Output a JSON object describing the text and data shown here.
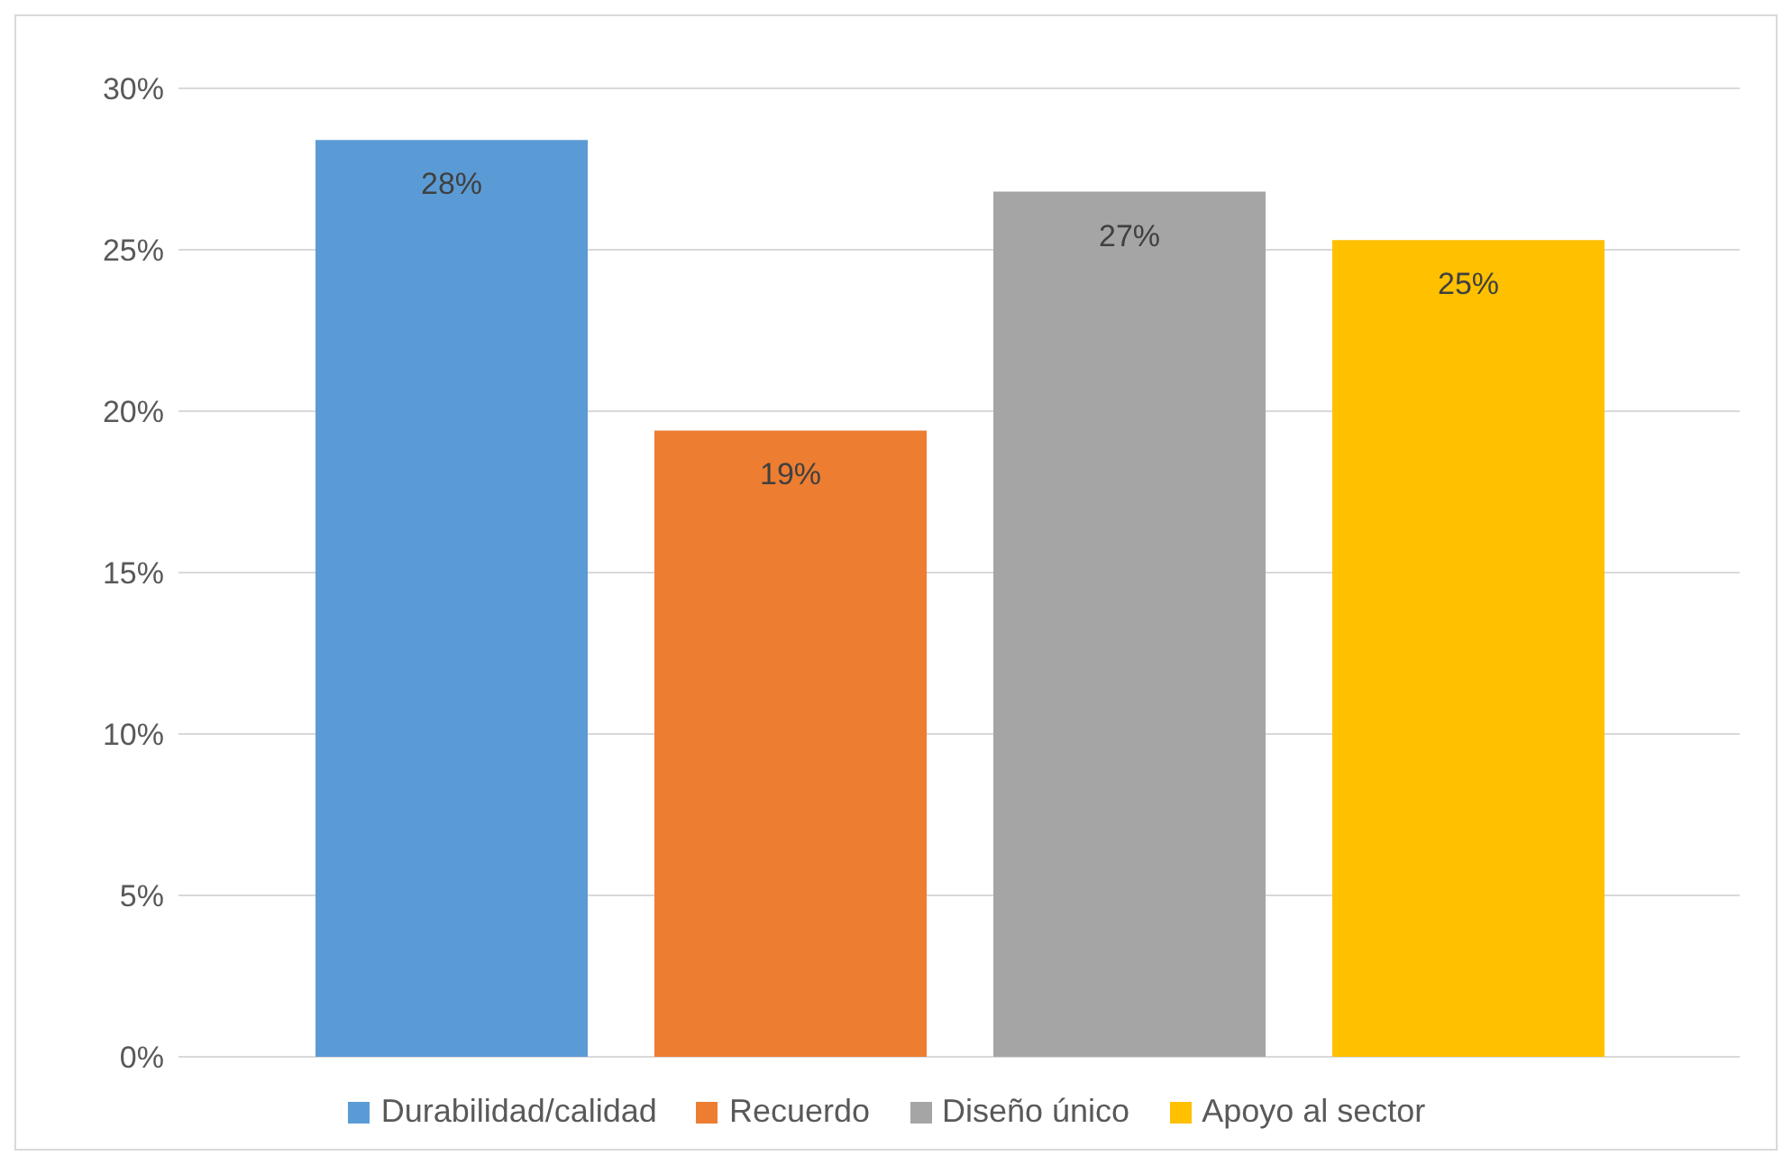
{
  "chart_data": {
    "type": "bar",
    "categories": [
      null
    ],
    "series": [
      {
        "name": "Durabilidad/calidad",
        "color": "#5b9bd5",
        "values": [
          28.4
        ],
        "value_labels": [
          "28%"
        ]
      },
      {
        "name": "Recuerdo",
        "color": "#ed7d31",
        "values": [
          19.4
        ],
        "value_labels": [
          "19%"
        ]
      },
      {
        "name": "Diseño único",
        "color": "#a5a5a5",
        "values": [
          26.8
        ],
        "value_labels": [
          "27%"
        ]
      },
      {
        "name": "Apoyo al sector",
        "color": "#ffc000",
        "values": [
          25.3
        ],
        "value_labels": [
          "25%"
        ]
      }
    ],
    "ylim": [
      0,
      30
    ],
    "yticks": [
      {
        "value": 0,
        "label": "0%"
      },
      {
        "value": 5,
        "label": "5%"
      },
      {
        "value": 10,
        "label": "10%"
      },
      {
        "value": 15,
        "label": "15%"
      },
      {
        "value": 20,
        "label": "20%"
      },
      {
        "value": 25,
        "label": "25%"
      },
      {
        "value": 30,
        "label": "30%"
      }
    ],
    "grid": "y",
    "legend": "bottom",
    "tick_labels": "y"
  }
}
